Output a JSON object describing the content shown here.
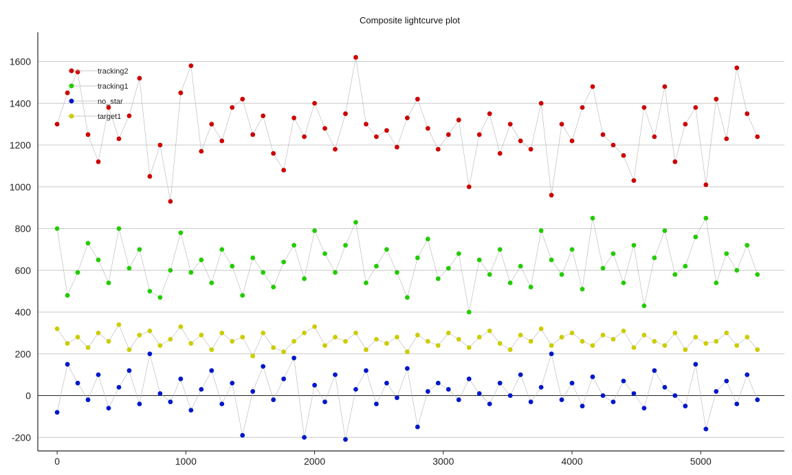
{
  "chart_data": {
    "type": "scatter",
    "title": "Composite lightcurve plot",
    "xlabel": "",
    "ylabel": "",
    "xlim": [
      -150,
      5650
    ],
    "ylim": [
      -265,
      1740
    ],
    "xticks": [
      0,
      1000,
      2000,
      3000,
      4000,
      5000
    ],
    "yticks": [
      -200,
      0,
      200,
      400,
      600,
      800,
      1000,
      1200,
      1400,
      1600
    ],
    "grid": true,
    "zero_line": true,
    "legend_position": "top-left",
    "series": [
      {
        "name": "tracking2",
        "color": "#cc0000",
        "x": [
          0,
          80,
          160,
          240,
          320,
          400,
          480,
          560,
          640,
          720,
          800,
          880,
          960,
          1040,
          1120,
          1200,
          1280,
          1360,
          1440,
          1520,
          1600,
          1680,
          1760,
          1840,
          1920,
          2000,
          2080,
          2160,
          2240,
          2320,
          2400,
          2480,
          2560,
          2640,
          2720,
          2800,
          2880,
          2960,
          3040,
          3120,
          3200,
          3280,
          3360,
          3440,
          3520,
          3600,
          3680,
          3760,
          3840,
          3920,
          4000,
          4080,
          4160,
          4240,
          4320,
          4400,
          4480,
          4560,
          4640,
          4720,
          4800,
          4880,
          4960,
          5040,
          5120,
          5200,
          5280,
          5360,
          5440
        ],
        "y": [
          1300,
          1450,
          1550,
          1250,
          1120,
          1380,
          1230,
          1340,
          1520,
          1050,
          1200,
          930,
          1450,
          1580,
          1170,
          1300,
          1220,
          1380,
          1420,
          1250,
          1340,
          1160,
          1080,
          1330,
          1240,
          1400,
          1280,
          1180,
          1350,
          1620,
          1300,
          1240,
          1270,
          1190,
          1330,
          1420,
          1280,
          1180,
          1250,
          1320,
          1000,
          1250,
          1350,
          1160,
          1300,
          1220,
          1180,
          1400,
          960,
          1300,
          1220,
          1380,
          1480,
          1250,
          1200,
          1150,
          1030,
          1380,
          1240,
          1480,
          1120,
          1300,
          1380,
          1010,
          1420,
          1230,
          1570,
          1350,
          1240
        ]
      },
      {
        "name": "tracking1",
        "color": "#22cc00",
        "x": [
          0,
          80,
          160,
          240,
          320,
          400,
          480,
          560,
          640,
          720,
          800,
          880,
          960,
          1040,
          1120,
          1200,
          1280,
          1360,
          1440,
          1520,
          1600,
          1680,
          1760,
          1840,
          1920,
          2000,
          2080,
          2160,
          2240,
          2320,
          2400,
          2480,
          2560,
          2640,
          2720,
          2800,
          2880,
          2960,
          3040,
          3120,
          3200,
          3280,
          3360,
          3440,
          3520,
          3600,
          3680,
          3760,
          3840,
          3920,
          4000,
          4080,
          4160,
          4240,
          4320,
          4400,
          4480,
          4560,
          4640,
          4720,
          4800,
          4880,
          4960,
          5040,
          5120,
          5200,
          5280,
          5360,
          5440
        ],
        "y": [
          800,
          480,
          590,
          730,
          650,
          540,
          800,
          610,
          700,
          500,
          470,
          600,
          780,
          590,
          650,
          540,
          700,
          620,
          480,
          660,
          590,
          520,
          640,
          720,
          560,
          790,
          680,
          590,
          720,
          830,
          540,
          620,
          700,
          590,
          470,
          660,
          750,
          560,
          610,
          680,
          400,
          650,
          580,
          700,
          540,
          620,
          520,
          790,
          650,
          580,
          700,
          510,
          850,
          610,
          680,
          540,
          720,
          430,
          660,
          790,
          580,
          620,
          760,
          850,
          540,
          680,
          600,
          720,
          580
        ]
      },
      {
        "name": "no_star",
        "color": "#0018c8",
        "x": [
          0,
          80,
          160,
          240,
          320,
          400,
          480,
          560,
          640,
          720,
          800,
          880,
          960,
          1040,
          1120,
          1200,
          1280,
          1360,
          1440,
          1520,
          1600,
          1680,
          1760,
          1840,
          1920,
          2000,
          2080,
          2160,
          2240,
          2320,
          2400,
          2480,
          2560,
          2640,
          2720,
          2800,
          2880,
          2960,
          3040,
          3120,
          3200,
          3280,
          3360,
          3440,
          3520,
          3600,
          3680,
          3760,
          3840,
          3920,
          4000,
          4080,
          4160,
          4240,
          4320,
          4400,
          4480,
          4560,
          4640,
          4720,
          4800,
          4880,
          4960,
          5040,
          5120,
          5200,
          5280,
          5360,
          5440
        ],
        "y": [
          -80,
          150,
          60,
          -20,
          100,
          -60,
          40,
          120,
          -40,
          200,
          10,
          -30,
          80,
          -70,
          30,
          120,
          -40,
          60,
          -190,
          20,
          140,
          -20,
          80,
          180,
          -200,
          50,
          -30,
          100,
          -210,
          30,
          120,
          -40,
          60,
          -10,
          130,
          -150,
          20,
          60,
          30,
          -20,
          80,
          10,
          -40,
          60,
          0,
          100,
          -30,
          40,
          200,
          -20,
          60,
          -50,
          90,
          0,
          -30,
          70,
          10,
          -60,
          120,
          40,
          0,
          -50,
          150,
          -160,
          20,
          70,
          -40,
          100,
          -20
        ]
      },
      {
        "name": "target1",
        "color": "#cccc00",
        "x": [
          0,
          80,
          160,
          240,
          320,
          400,
          480,
          560,
          640,
          720,
          800,
          880,
          960,
          1040,
          1120,
          1200,
          1280,
          1360,
          1440,
          1520,
          1600,
          1680,
          1760,
          1840,
          1920,
          2000,
          2080,
          2160,
          2240,
          2320,
          2400,
          2480,
          2560,
          2640,
          2720,
          2800,
          2880,
          2960,
          3040,
          3120,
          3200,
          3280,
          3360,
          3440,
          3520,
          3600,
          3680,
          3760,
          3840,
          3920,
          4000,
          4080,
          4160,
          4240,
          4320,
          4400,
          4480,
          4560,
          4640,
          4720,
          4800,
          4880,
          4960,
          5040,
          5120,
          5200,
          5280,
          5360,
          5440
        ],
        "y": [
          320,
          250,
          280,
          230,
          300,
          260,
          340,
          220,
          290,
          310,
          240,
          270,
          330,
          250,
          290,
          220,
          300,
          260,
          280,
          190,
          300,
          230,
          210,
          260,
          300,
          330,
          240,
          280,
          260,
          300,
          220,
          270,
          250,
          280,
          210,
          290,
          260,
          240,
          300,
          270,
          230,
          280,
          310,
          250,
          220,
          290,
          260,
          320,
          240,
          280,
          300,
          260,
          240,
          290,
          270,
          310,
          230,
          290,
          260,
          240,
          300,
          220,
          280,
          250,
          260,
          300,
          240,
          280,
          220
        ]
      }
    ]
  }
}
